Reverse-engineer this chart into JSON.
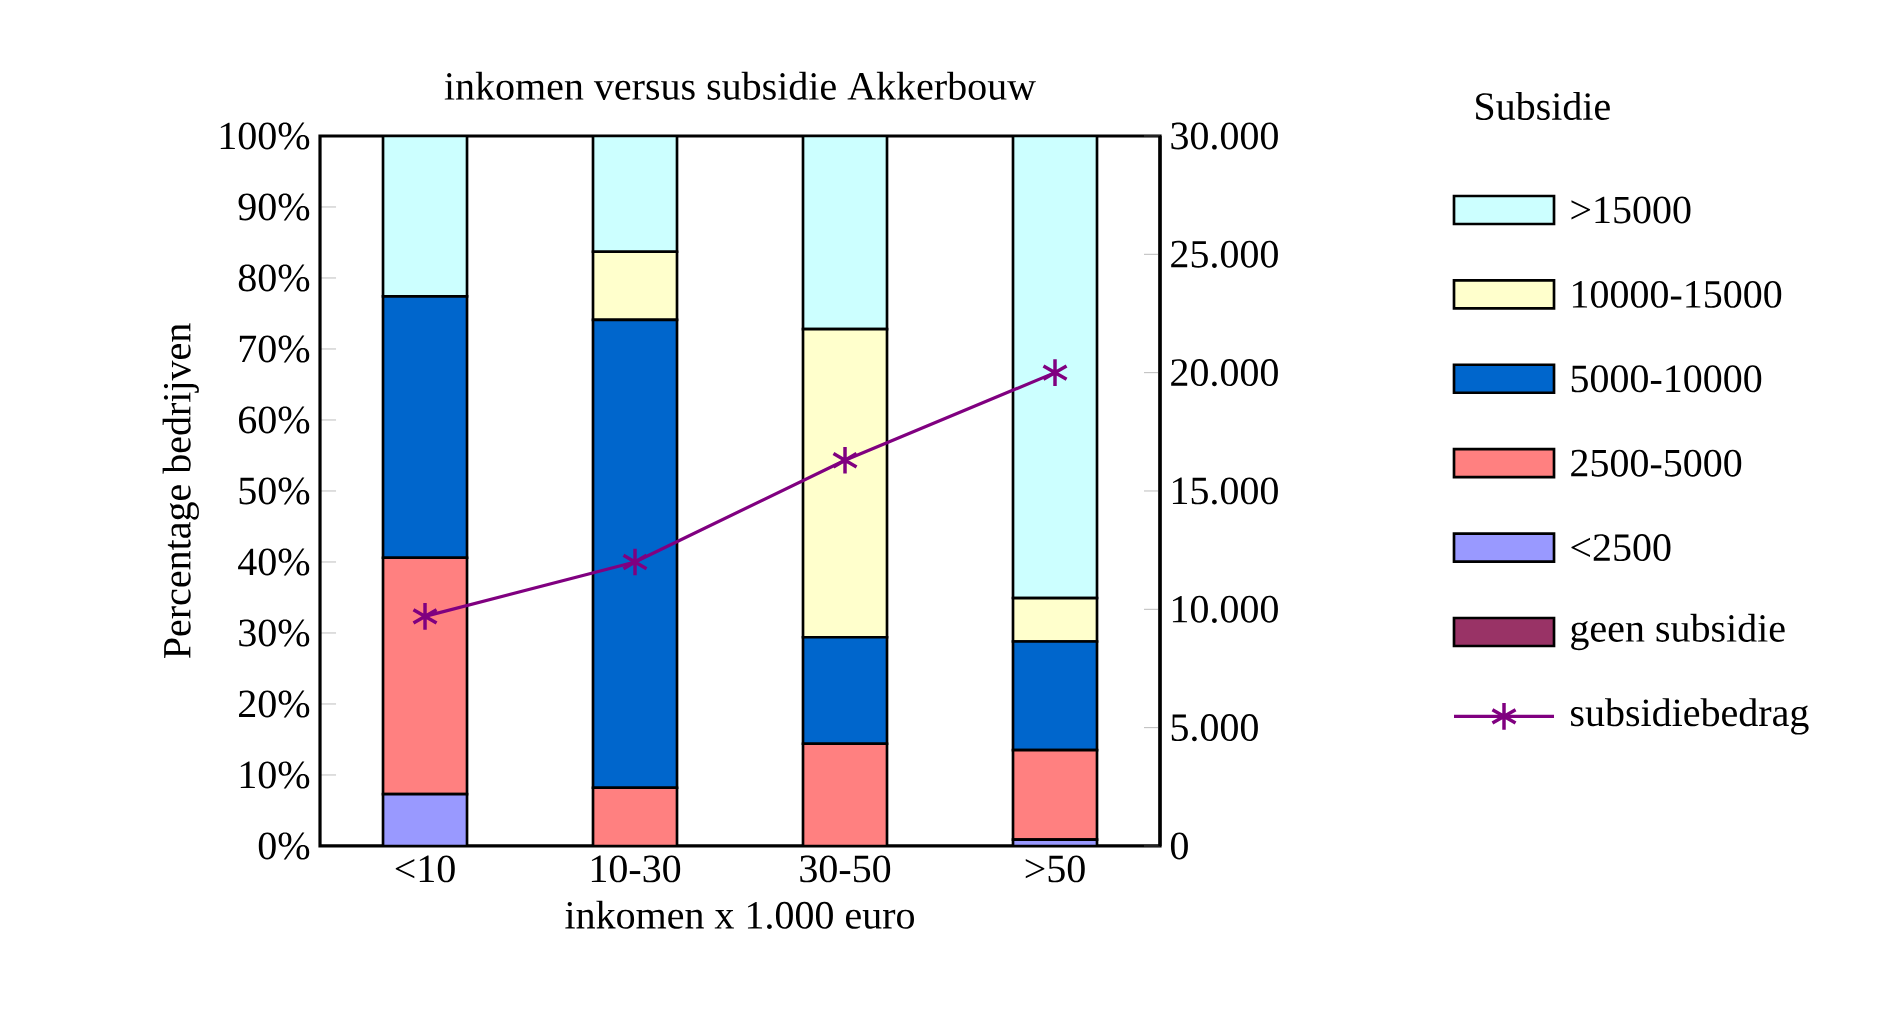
{
  "chart_data": {
    "type": "bar",
    "title": "inkomen versus subsidie Akkerbouw",
    "xlabel": "inkomen x 1.000 euro",
    "ylabel": "Percentage bedrijven",
    "legend_title": "Subsidie",
    "categories": [
      "<10",
      "10-30",
      "30-50",
      ">50"
    ],
    "stacked": true,
    "legend": "right",
    "ylim": [
      0,
      100
    ],
    "yticks": [
      {
        "value": 0,
        "label": "0%"
      },
      {
        "value": 10,
        "label": "10%"
      },
      {
        "value": 20,
        "label": "20%"
      },
      {
        "value": 30,
        "label": "30%"
      },
      {
        "value": 40,
        "label": "40%"
      },
      {
        "value": 50,
        "label": "50%"
      },
      {
        "value": 60,
        "label": "60%"
      },
      {
        "value": 70,
        "label": "70%"
      },
      {
        "value": 80,
        "label": "80%"
      },
      {
        "value": 90,
        "label": "90%"
      },
      {
        "value": 100,
        "label": "100%"
      }
    ],
    "y2lim": [
      0,
      30000
    ],
    "y2ticks": [
      0,
      {
        "value": 5000,
        "label": "5.000"
      },
      {
        "value": 10000,
        "label": "10.000"
      },
      {
        "value": 15000,
        "label": "15.000"
      },
      {
        "value": 20000,
        "label": "20.000"
      },
      {
        "value": 25000,
        "label": "25.000"
      },
      {
        "value": 30000,
        "label": "30.000"
      }
    ],
    "series": [
      {
        "name": "geen subsidie",
        "color": "#993366",
        "values": [
          0,
          0,
          0,
          0
        ]
      },
      {
        "name": "<2500",
        "color": "#9999ff",
        "values": [
          7.3,
          0,
          0,
          0.9
        ]
      },
      {
        "name": "2500-5000",
        "color": "#ff8080",
        "values": [
          33.3,
          8.2,
          14.4,
          12.6
        ]
      },
      {
        "name": "5000-10000",
        "color": "#0066cc",
        "values": [
          36.8,
          65.9,
          15.0,
          15.3
        ]
      },
      {
        "name": "10000-15000",
        "color": "#ffffcc",
        "values": [
          null,
          9.6,
          43.4,
          6.1
        ]
      },
      {
        "name": ">15000",
        "color": "#ccffff",
        "values": [
          22.6,
          16.3,
          27.2,
          65.1
        ]
      },
      {
        "name": "subsidiebedrag",
        "type": "line",
        "axis": "y2",
        "marker": "cross",
        "color": "#800080",
        "values": [
          9700,
          12000,
          16300,
          20000
        ]
      }
    ]
  }
}
